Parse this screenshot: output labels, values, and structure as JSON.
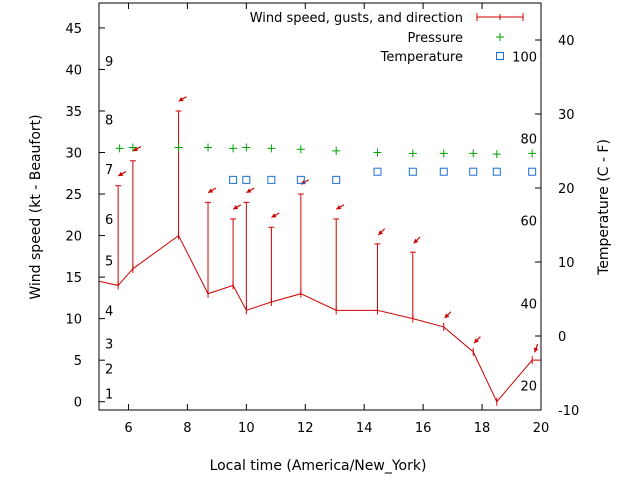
{
  "chart_data": {
    "type": "line",
    "xlabel": "Local time (America/New_York)",
    "ylabel": "Wind speed (kt - Beaufort)",
    "y2label": "Temperature (C - F)",
    "xlim": [
      5,
      20
    ],
    "ylim": [
      -1,
      48
    ],
    "y2lim": [
      -10,
      45
    ],
    "x_ticks": [
      6,
      8,
      10,
      12,
      14,
      16,
      18,
      20
    ],
    "y_ticks": [
      0,
      5,
      10,
      15,
      20,
      25,
      30,
      35,
      40,
      45
    ],
    "y2_ticks": [
      -10,
      0,
      10,
      20,
      30,
      40
    ],
    "beaufort_labels": [
      {
        "text": "1",
        "y": 1
      },
      {
        "text": "2",
        "y": 4
      },
      {
        "text": "3",
        "y": 7
      },
      {
        "text": "4",
        "y": 11
      },
      {
        "text": "5",
        "y": 17
      },
      {
        "text": "6",
        "y": 22
      },
      {
        "text": "7",
        "y": 28
      },
      {
        "text": "8",
        "y": 34
      },
      {
        "text": "9",
        "y": 41
      }
    ],
    "fahrenheit_labels": [
      {
        "text": "20",
        "y": -6.7
      },
      {
        "text": "40",
        "y": 4.4
      },
      {
        "text": "60",
        "y": 15.6
      },
      {
        "text": "80",
        "y": 26.7
      },
      {
        "text": "100",
        "y": 37.8
      }
    ],
    "legend": {
      "placement": "top-right",
      "wind_label": "Wind speed, gusts, and direction",
      "pressure_label": "Pressure",
      "temperature_label": "Temperature"
    },
    "colors": {
      "wind": "#d00000",
      "pressure": "#00a000",
      "temperature": "#1a6fd4",
      "axis": "#000000"
    },
    "wind": [
      {
        "x": 5.0,
        "speed": 14.5,
        "gust": null,
        "dir": null
      },
      {
        "x": 5.65,
        "speed": 14,
        "gust": 26,
        "dir": 30
      },
      {
        "x": 6.15,
        "speed": 16,
        "gust": 29,
        "dir": 30
      },
      {
        "x": 7.7,
        "speed": 20,
        "gust": 35,
        "dir": 30
      },
      {
        "x": 8.7,
        "speed": 13,
        "gust": 24,
        "dir": 30
      },
      {
        "x": 9.55,
        "speed": 14,
        "gust": 22,
        "dir": 30
      },
      {
        "x": 10.0,
        "speed": 11,
        "gust": 24,
        "dir": 30
      },
      {
        "x": 10.85,
        "speed": 12,
        "gust": 21,
        "dir": 30
      },
      {
        "x": 11.85,
        "speed": 13,
        "gust": 25,
        "dir": 30
      },
      {
        "x": 13.05,
        "speed": 11,
        "gust": 22,
        "dir": 30
      },
      {
        "x": 14.45,
        "speed": 11,
        "gust": 19,
        "dir": 45
      },
      {
        "x": 15.65,
        "speed": 10,
        "gust": 18,
        "dir": 45
      },
      {
        "x": 16.7,
        "speed": 9,
        "gust": null,
        "dir": 45
      },
      {
        "x": 17.7,
        "speed": 6,
        "gust": null,
        "dir": 45
      },
      {
        "x": 18.5,
        "speed": 0,
        "gust": null,
        "dir": null
      },
      {
        "x": 19.7,
        "speed": 5,
        "gust": null,
        "dir": 70
      },
      {
        "x": 20.0,
        "speed": 5,
        "gust": null,
        "dir": null
      }
    ],
    "pressure": [
      {
        "x": 5.7,
        "y": 30.5
      },
      {
        "x": 6.15,
        "y": 30.6
      },
      {
        "x": 7.7,
        "y": 30.6
      },
      {
        "x": 8.7,
        "y": 30.6
      },
      {
        "x": 9.55,
        "y": 30.5
      },
      {
        "x": 10.0,
        "y": 30.6
      },
      {
        "x": 10.85,
        "y": 30.5
      },
      {
        "x": 11.85,
        "y": 30.4
      },
      {
        "x": 13.05,
        "y": 30.2
      },
      {
        "x": 14.45,
        "y": 30.0
      },
      {
        "x": 15.65,
        "y": 29.9
      },
      {
        "x": 16.7,
        "y": 29.9
      },
      {
        "x": 17.7,
        "y": 29.9
      },
      {
        "x": 18.5,
        "y": 29.8
      },
      {
        "x": 19.7,
        "y": 29.9
      }
    ],
    "temperature": [
      {
        "x": 9.55,
        "y": 21.1
      },
      {
        "x": 10.0,
        "y": 21.1
      },
      {
        "x": 10.85,
        "y": 21.1
      },
      {
        "x": 11.85,
        "y": 21.1
      },
      {
        "x": 13.05,
        "y": 21.1
      },
      {
        "x": 14.45,
        "y": 22.2
      },
      {
        "x": 15.65,
        "y": 22.2
      },
      {
        "x": 16.7,
        "y": 22.2
      },
      {
        "x": 17.7,
        "y": 22.2
      },
      {
        "x": 18.5,
        "y": 22.2
      },
      {
        "x": 19.7,
        "y": 22.2
      }
    ]
  }
}
